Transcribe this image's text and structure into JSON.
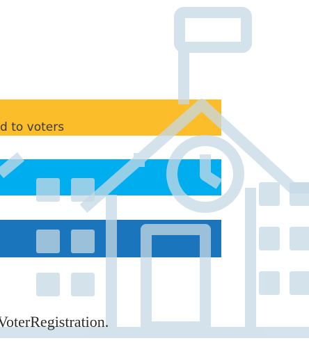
{
  "banner_text": "d to voters",
  "footer_text": "VoterRegistration."
}
